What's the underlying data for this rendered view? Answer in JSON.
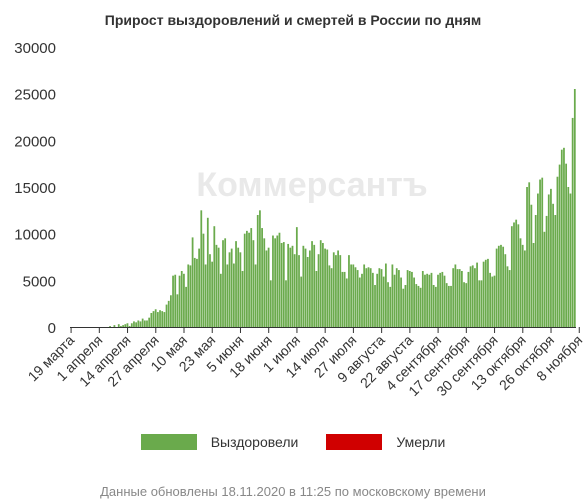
{
  "watermark": "Коммерсантъ",
  "footnote": "Данные обновлены 18.11.2020 в 11:25 по московскому времени",
  "colors": {
    "recovered": "#6aaa4c",
    "died": "#d00000",
    "axis": "#333333",
    "text": "#333333"
  },
  "chart_data": {
    "type": "bar",
    "title": "Прирост выздоровлений и смертей в России по дням",
    "xlabel": "",
    "ylabel": "",
    "ylim": [
      0,
      30000
    ],
    "yticks": [
      0,
      5000,
      10000,
      15000,
      20000,
      25000,
      30000
    ],
    "grid": false,
    "legend_position": "bottom",
    "start_date": "2020-03-19",
    "xtick_labels": [
      "19 марта",
      "1 апреля",
      "14 апреля",
      "27 апреля",
      "10 мая",
      "23 мая",
      "5 июня",
      "18 июня",
      "1 июля",
      "14 июля",
      "27 июля",
      "9 августа",
      "22 августа",
      "4 сентября",
      "17 сентября",
      "30 сентября",
      "13 октября",
      "26 октября",
      "8 ноября"
    ],
    "xtick_day_offsets": [
      0,
      13,
      26,
      39,
      52,
      65,
      78,
      91,
      104,
      117,
      130,
      143,
      156,
      169,
      182,
      195,
      208,
      221,
      234
    ],
    "series": [
      {
        "name": "Выздоровели",
        "color": "#6aaa4c",
        "values": [
          0,
          0,
          0,
          0,
          0,
          0,
          0,
          0,
          0,
          0,
          0,
          0,
          0,
          0,
          0,
          0,
          0,
          0,
          100,
          0,
          200,
          0,
          300,
          100,
          200,
          300,
          400,
          100,
          400,
          600,
          500,
          700,
          600,
          900,
          700,
          700,
          1000,
          1500,
          1700,
          1900,
          1600,
          1800,
          1700,
          1600,
          2400,
          2800,
          3400,
          5500,
          5600,
          3500,
          5500,
          6000,
          5700,
          4300,
          6700,
          6600,
          9600,
          7400,
          7300,
          8400,
          12500,
          10000,
          6700,
          11700,
          7800,
          7000,
          10800,
          8800,
          8500,
          5700,
          9300,
          9500,
          6700,
          8000,
          8400,
          6800,
          9200,
          8500,
          8000,
          6000,
          10000,
          10300,
          10100,
          10600,
          9300,
          6700,
          12000,
          12500,
          10600,
          9500,
          8200,
          8500,
          5000,
          9800,
          9500,
          9800,
          10100,
          9000,
          9100,
          5000,
          8900,
          8500,
          8700,
          7800,
          10700,
          7700,
          5400,
          8700,
          8400,
          7500,
          8200,
          9200,
          8800,
          6000,
          7800,
          9300,
          9000,
          8400,
          8300,
          6600,
          6300,
          8000,
          7700,
          8200,
          7700,
          5900,
          5900,
          5200,
          7700,
          6700,
          6700,
          6400,
          6100,
          5300,
          5700,
          6700,
          6300,
          6400,
          6300,
          5800,
          4500,
          5700,
          6300,
          6200,
          5400,
          6800,
          4800,
          4300,
          6700,
          5600,
          6300,
          6100,
          5300,
          4100,
          4500,
          6100,
          6000,
          5900,
          5300,
          4600,
          4400,
          4200,
          6000,
          5600,
          5700,
          5600,
          5800,
          4500,
          4300,
          5600,
          5800,
          5900,
          5500,
          4700,
          4400,
          4400,
          6300,
          6700,
          6200,
          6200,
          6000,
          4800,
          4700,
          5900,
          6500,
          6600,
          6300,
          6900,
          5000,
          5000,
          7000,
          7200,
          7300,
          5800,
          5400,
          5500,
          8400,
          8700,
          8800,
          8600,
          7800,
          6500,
          6100,
          10800,
          11200,
          11500,
          11000,
          9500,
          8800,
          8200,
          15000,
          15500,
          13100,
          9000,
          12000,
          14300,
          15800,
          16000,
          10200,
          11900,
          14200,
          14800,
          13200,
          12000,
          16100,
          17400,
          19000,
          19200,
          17500,
          15000,
          14300,
          22400,
          25500
        ]
      },
      {
        "name": "Умерли",
        "color": "#d00000",
        "values": [
          0,
          0,
          0,
          0,
          0,
          0,
          0,
          0,
          0,
          0,
          0,
          0,
          0,
          0,
          0,
          0,
          0,
          0,
          0,
          0,
          0,
          0,
          0,
          0,
          0,
          0,
          0,
          0,
          0,
          0,
          0,
          0,
          0,
          0,
          0,
          0,
          0,
          0,
          0,
          0,
          0,
          0,
          0,
          0,
          0,
          0,
          0,
          0,
          0,
          0,
          0,
          0,
          0,
          0,
          0,
          0,
          0,
          0,
          0,
          0,
          0,
          0,
          0,
          0,
          0,
          0,
          0,
          0,
          0,
          0,
          0,
          0,
          0,
          0,
          0,
          0,
          0,
          0,
          0,
          0,
          0,
          0,
          0,
          0,
          0,
          0,
          0,
          0,
          0,
          0,
          0,
          0,
          0,
          0,
          0,
          0,
          0,
          0,
          0,
          0,
          0,
          0,
          0,
          0,
          0,
          0,
          0,
          0,
          0,
          0,
          0,
          0,
          0,
          0,
          0,
          0,
          0,
          0,
          0,
          0,
          0,
          0,
          0,
          0,
          0,
          0,
          0,
          0,
          0,
          0,
          0,
          0,
          0,
          0,
          0,
          0,
          0,
          0,
          0,
          0,
          0,
          0,
          0,
          0,
          0,
          0,
          0,
          0,
          0,
          0,
          0,
          0,
          0,
          0,
          0,
          0,
          0,
          0,
          0,
          0,
          0,
          0,
          0,
          0,
          0,
          0,
          0,
          0,
          0,
          0,
          0,
          0,
          0,
          0,
          0,
          0,
          0,
          0,
          0,
          0,
          0,
          0,
          0,
          0,
          0,
          0,
          0,
          0,
          0,
          0,
          0,
          0,
          0,
          0,
          0,
          0,
          0,
          0,
          0,
          0,
          0,
          0,
          0,
          0,
          0,
          0,
          0,
          0,
          0,
          0,
          0,
          0,
          0,
          0,
          0,
          0,
          0,
          0,
          0,
          0,
          0,
          0,
          0,
          0,
          0,
          0,
          0,
          0,
          0,
          0,
          0,
          0,
          0,
          0,
          0,
          0,
          0,
          0,
          0,
          0,
          0,
          0,
          0,
          0,
          0,
          0,
          0,
          0,
          0
        ]
      }
    ]
  }
}
